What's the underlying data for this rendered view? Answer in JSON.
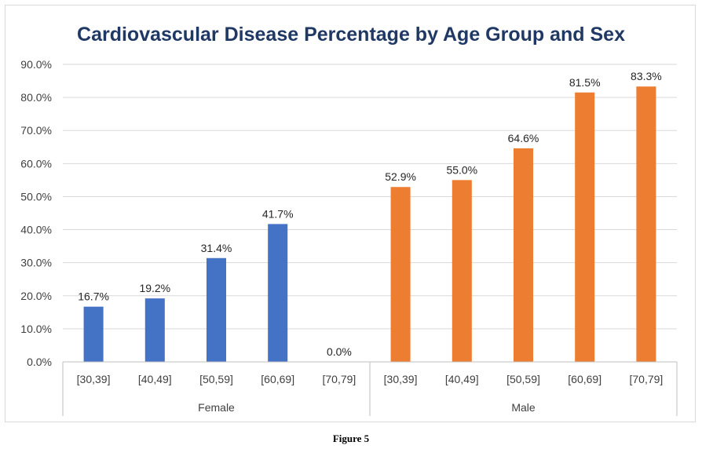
{
  "chart_data": {
    "type": "bar",
    "title": "Cardiovascular Disease Percentage by Age Group and Sex",
    "xlabel": "",
    "ylabel": "",
    "ylim": [
      0,
      90
    ],
    "yticks": [
      "0.0%",
      "10.0%",
      "20.0%",
      "30.0%",
      "40.0%",
      "50.0%",
      "60.0%",
      "70.0%",
      "80.0%",
      "90.0%"
    ],
    "grid": true,
    "legend": "none",
    "groups": [
      {
        "name": "Female",
        "color": "#4472c4",
        "categories": [
          "[30,39]",
          "[40,49]",
          "[50,59]",
          "[60,69]",
          "[70,79]"
        ],
        "values": [
          16.7,
          19.2,
          31.4,
          41.7,
          0.0
        ],
        "labels": [
          "16.7%",
          "19.2%",
          "31.4%",
          "41.7%",
          "0.0%"
        ]
      },
      {
        "name": "Male",
        "color": "#ed7d31",
        "categories": [
          "[30,39]",
          "[40,49]",
          "[50,59]",
          "[60,69]",
          "[70,79]"
        ],
        "values": [
          52.9,
          55.0,
          64.6,
          81.5,
          83.3
        ],
        "labels": [
          "52.9%",
          "55.0%",
          "64.6%",
          "81.5%",
          "83.3%"
        ]
      }
    ]
  },
  "caption": "Figure 5"
}
